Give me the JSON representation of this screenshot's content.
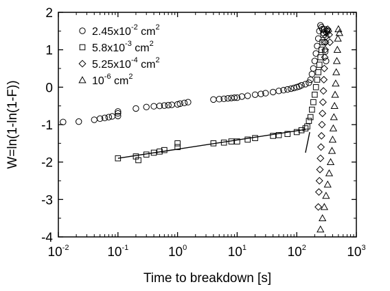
{
  "chart_data": {
    "type": "scatter",
    "title": "",
    "xlabel": "Time to breakdown [s]",
    "ylabel": "W=ln(1-ln(1-F))",
    "x_scale": "log",
    "xlim": [
      0.01,
      1000
    ],
    "ylim": [
      -4,
      2
    ],
    "x_ticks": [
      {
        "base": "10",
        "exp": "-2"
      },
      {
        "base": "10",
        "exp": "-1"
      },
      {
        "base": "10",
        "exp": "0"
      },
      {
        "base": "10",
        "exp": "1"
      },
      {
        "base": "10",
        "exp": "2"
      },
      {
        "base": "10",
        "exp": "3"
      }
    ],
    "y_ticks": [
      "-4",
      "-3",
      "-2",
      "-1",
      "0",
      "1",
      "2"
    ],
    "grid": false,
    "legend_position": "top-left",
    "legend": [
      {
        "marker": "circle",
        "text": "2.45x10",
        "exp": "-2",
        "unit": " cm",
        "unit_exp": "2"
      },
      {
        "marker": "square",
        "text": "5.8x10",
        "exp": "-3",
        "unit": " cm",
        "unit_exp": "2"
      },
      {
        "marker": "diamond",
        "text": "5.25x10",
        "exp": "-4",
        "unit": " cm",
        "unit_exp": "2"
      },
      {
        "marker": "triangle",
        "text": "10",
        "exp": "-6",
        "unit": " cm",
        "unit_exp": "2"
      }
    ],
    "series": [
      {
        "marker": "circle",
        "points": [
          [
            0.012,
            -0.93
          ],
          [
            0.022,
            -0.92
          ],
          [
            0.04,
            -0.87
          ],
          [
            0.05,
            -0.84
          ],
          [
            0.06,
            -0.82
          ],
          [
            0.07,
            -0.8
          ],
          [
            0.08,
            -0.78
          ],
          [
            0.1,
            -0.77
          ],
          [
            0.1,
            -0.7
          ],
          [
            0.1,
            -0.65
          ],
          [
            0.2,
            -0.57
          ],
          [
            0.3,
            -0.53
          ],
          [
            0.4,
            -0.51
          ],
          [
            0.5,
            -0.5
          ],
          [
            0.6,
            -0.49
          ],
          [
            0.7,
            -0.48
          ],
          [
            0.8,
            -0.47
          ],
          [
            1.0,
            -0.46
          ],
          [
            1.1,
            -0.44
          ],
          [
            1.3,
            -0.42
          ],
          [
            1.5,
            -0.4
          ],
          [
            4.0,
            -0.33
          ],
          [
            5.0,
            -0.32
          ],
          [
            6.0,
            -0.31
          ],
          [
            7.0,
            -0.3
          ],
          [
            8.0,
            -0.29
          ],
          [
            9.0,
            -0.28
          ],
          [
            10,
            -0.28
          ],
          [
            12,
            -0.25
          ],
          [
            15,
            -0.23
          ],
          [
            20,
            -0.2
          ],
          [
            25,
            -0.18
          ],
          [
            30,
            -0.16
          ],
          [
            40,
            -0.13
          ],
          [
            50,
            -0.1
          ],
          [
            60,
            -0.08
          ],
          [
            70,
            -0.06
          ],
          [
            80,
            -0.04
          ],
          [
            90,
            -0.02
          ],
          [
            100,
            0.0
          ],
          [
            110,
            0.02
          ],
          [
            120,
            0.05
          ],
          [
            140,
            0.08
          ],
          [
            160,
            0.12
          ],
          [
            170,
            0.2
          ],
          [
            180,
            0.35
          ],
          [
            190,
            0.5
          ],
          [
            200,
            0.7
          ],
          [
            210,
            0.9
          ],
          [
            220,
            1.1
          ],
          [
            230,
            1.3
          ],
          [
            240,
            1.5
          ],
          [
            250,
            1.65
          ],
          [
            260,
            1.6
          ],
          [
            270,
            1.55
          ],
          [
            280,
            1.45
          ],
          [
            290,
            1.2
          ],
          [
            300,
            0.95
          ],
          [
            310,
            0.7
          ]
        ]
      },
      {
        "marker": "square",
        "points": [
          [
            0.1,
            -1.9
          ],
          [
            0.2,
            -1.85
          ],
          [
            0.22,
            -1.95
          ],
          [
            0.3,
            -1.8
          ],
          [
            0.4,
            -1.75
          ],
          [
            0.5,
            -1.72
          ],
          [
            0.6,
            -1.68
          ],
          [
            1.0,
            -1.6
          ],
          [
            1.0,
            -1.5
          ],
          [
            4.0,
            -1.5
          ],
          [
            6.0,
            -1.48
          ],
          [
            8.0,
            -1.45
          ],
          [
            10,
            -1.45
          ],
          [
            15,
            -1.4
          ],
          [
            20,
            -1.36
          ],
          [
            40,
            -1.3
          ],
          [
            50,
            -1.28
          ],
          [
            70,
            -1.25
          ],
          [
            100,
            -1.2
          ],
          [
            120,
            -1.15
          ],
          [
            140,
            -1.1
          ],
          [
            150,
            -1.05
          ],
          [
            160,
            -0.9
          ],
          [
            170,
            -0.8
          ],
          [
            180,
            -0.6
          ],
          [
            190,
            -0.4
          ],
          [
            200,
            -0.2
          ],
          [
            210,
            0.0
          ],
          [
            220,
            0.2
          ],
          [
            230,
            0.4
          ],
          [
            240,
            0.6
          ],
          [
            250,
            0.8
          ],
          [
            260,
            1.0
          ],
          [
            270,
            1.2
          ],
          [
            280,
            1.4
          ],
          [
            290,
            1.55
          ]
        ]
      },
      {
        "marker": "diamond",
        "points": [
          [
            230,
            -3.2
          ],
          [
            235,
            -2.8
          ],
          [
            240,
            -2.5
          ],
          [
            245,
            -2.2
          ],
          [
            250,
            -1.9
          ],
          [
            255,
            -1.6
          ],
          [
            260,
            -1.3
          ],
          [
            265,
            -1.0
          ],
          [
            270,
            -0.7
          ],
          [
            275,
            -0.4
          ],
          [
            280,
            -0.1
          ],
          [
            285,
            0.2
          ],
          [
            290,
            0.5
          ],
          [
            295,
            0.8
          ],
          [
            300,
            1.0
          ],
          [
            305,
            1.2
          ],
          [
            310,
            1.35
          ],
          [
            315,
            1.45
          ],
          [
            320,
            1.5
          ],
          [
            330,
            1.55
          ],
          [
            340,
            1.5
          ],
          [
            350,
            1.4
          ],
          [
            360,
            1.2
          ]
        ]
      },
      {
        "marker": "triangle",
        "points": [
          [
            250,
            -3.8
          ],
          [
            270,
            -3.5
          ],
          [
            290,
            -3.2
          ],
          [
            310,
            -2.9
          ],
          [
            330,
            -2.6
          ],
          [
            350,
            -2.3
          ],
          [
            370,
            -2.0
          ],
          [
            390,
            -1.7
          ],
          [
            400,
            -1.4
          ],
          [
            410,
            -1.1
          ],
          [
            420,
            -0.8
          ],
          [
            430,
            -0.5
          ],
          [
            440,
            -0.2
          ],
          [
            450,
            0.1
          ],
          [
            460,
            0.4
          ],
          [
            470,
            0.7
          ],
          [
            480,
            1.0
          ],
          [
            490,
            1.3
          ],
          [
            500,
            1.55
          ],
          [
            520,
            1.45
          ]
        ]
      }
    ],
    "fit_lines": [
      {
        "x": [
          0.1,
          140
        ],
        "y": [
          -1.9,
          -1.13
        ]
      },
      {
        "x": [
          140,
          165
        ],
        "y": [
          -1.75,
          -1.2
        ]
      }
    ]
  }
}
